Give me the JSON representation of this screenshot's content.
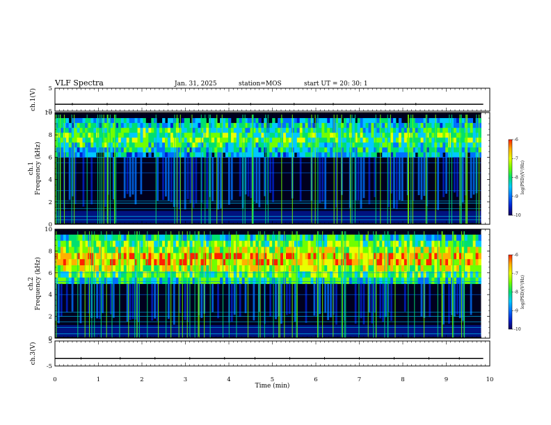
{
  "header": {
    "title": "VLF Spectra",
    "date": "Jan. 31, 2025",
    "station": "station=MOS",
    "start_ut": "start UT =  20: 30: 1"
  },
  "colors": {
    "spectrogram_background": "#00001e",
    "colormap": [
      "#10005a",
      "#0020d0",
      "#0070ff",
      "#00c8ff",
      "#00e070",
      "#70ff00",
      "#e8ff00",
      "#ffb000",
      "#ff2000"
    ]
  },
  "chart_data": [
    {
      "type": "line",
      "name": "ch1-voltage",
      "ylabel": "ch.1(V)",
      "ylim": [
        -5,
        5
      ],
      "y_ticks": [
        "5",
        "-5"
      ],
      "xlim": [
        0,
        10
      ],
      "trace_level": -2,
      "spikes": [
        0.4,
        1.2,
        2.1,
        2.6,
        3.3,
        4.0,
        4.5,
        5.5,
        6.4,
        7.6,
        8.3
      ]
    },
    {
      "type": "heatmap",
      "name": "ch1-spectrogram",
      "ylabel": "ch.1\nFrequency (kHz)",
      "ylim": [
        0,
        10
      ],
      "y_ticks": [
        "0",
        "2",
        "4",
        "6",
        "8",
        "10"
      ],
      "xlim": [
        0,
        10
      ],
      "data_extent_min": 9.8,
      "dominant_band_khz": [
        6,
        9.5
      ],
      "tone_lines_khz": [
        0.4,
        0.7,
        1.4,
        1.9,
        2.1,
        3.0,
        4.6,
        5.5,
        6.0
      ],
      "colorbar": {
        "label": "log(PSD)(V²/Hz)",
        "range": [
          -10,
          -6
        ],
        "ticks": [
          "-6",
          "-7",
          "-8",
          "-9",
          "-10"
        ]
      }
    },
    {
      "type": "heatmap",
      "name": "ch2-spectrogram",
      "ylabel": "ch.2\nFrequency (kHz)",
      "ylim": [
        0,
        10
      ],
      "y_ticks": [
        "0",
        "2",
        "4",
        "6",
        "8",
        "10"
      ],
      "xlim": [
        0,
        10
      ],
      "data_extent_min": 9.8,
      "dominant_band_khz": [
        5,
        9.5
      ],
      "tone_lines_khz": [
        0.4,
        1.0,
        1.5,
        2.0,
        2.4,
        4.0,
        5.2,
        6.0
      ],
      "colorbar": {
        "label": "log(PSD)(V²/Hz)",
        "range": [
          -10,
          -6
        ],
        "ticks": [
          "-6",
          "-7",
          "-8",
          "-9",
          "-10"
        ]
      }
    },
    {
      "type": "line",
      "name": "ch3-voltage",
      "ylabel": "ch.3(V)",
      "ylim": [
        -5,
        5
      ],
      "y_ticks": [
        "5",
        "-5"
      ],
      "xlim": [
        0,
        10
      ],
      "trace_level": -2,
      "spikes": [
        0.6,
        1.5,
        2.3,
        3.1,
        3.9,
        4.6,
        5.4,
        6.2,
        7.0,
        7.8,
        8.6,
        9.3
      ],
      "xlabel": "Time (min)",
      "x_ticks": [
        "0",
        "1",
        "2",
        "3",
        "4",
        "5",
        "6",
        "7",
        "8",
        "9",
        "10"
      ]
    }
  ]
}
